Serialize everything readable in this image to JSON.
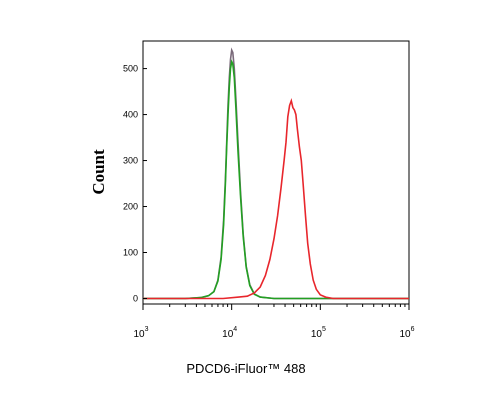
{
  "chart_data": {
    "type": "line",
    "xlabel": "PDCD6-iFluor™ 488",
    "ylabel": "Count",
    "xscale": "log",
    "xlim": [
      1000,
      1000000
    ],
    "ylim": [
      -12,
      560
    ],
    "x_ticks": [
      {
        "value": 1000,
        "base": "10",
        "exp": "3"
      },
      {
        "value": 10000,
        "base": "10",
        "exp": "4"
      },
      {
        "value": 100000,
        "base": "10",
        "exp": "5"
      },
      {
        "value": 1000000,
        "base": "10",
        "exp": "6"
      }
    ],
    "y_ticks": [
      "0",
      "100",
      "200",
      "300",
      "400",
      "500"
    ],
    "grid": false,
    "legend": "none",
    "series": [
      {
        "color": "#7a6a7a",
        "points": [
          [
            1000,
            0
          ],
          [
            3000,
            0
          ],
          [
            4500,
            2
          ],
          [
            5500,
            6
          ],
          [
            6300,
            15
          ],
          [
            7000,
            40
          ],
          [
            7600,
            90
          ],
          [
            8100,
            170
          ],
          [
            8500,
            260
          ],
          [
            8800,
            340
          ],
          [
            9100,
            420
          ],
          [
            9400,
            480
          ],
          [
            9700,
            520
          ],
          [
            10000,
            540
          ],
          [
            10300,
            535
          ],
          [
            10700,
            500
          ],
          [
            11200,
            430
          ],
          [
            11800,
            340
          ],
          [
            12600,
            230
          ],
          [
            13500,
            140
          ],
          [
            14600,
            70
          ],
          [
            16000,
            30
          ],
          [
            18000,
            10
          ],
          [
            21000,
            3
          ],
          [
            30000,
            0
          ],
          [
            1000000,
            0
          ]
        ]
      },
      {
        "color": "#22a022",
        "points": [
          [
            1000,
            0
          ],
          [
            3000,
            0
          ],
          [
            4500,
            2
          ],
          [
            5500,
            6
          ],
          [
            6300,
            15
          ],
          [
            7000,
            38
          ],
          [
            7600,
            85
          ],
          [
            8100,
            160
          ],
          [
            8500,
            250
          ],
          [
            8800,
            330
          ],
          [
            9100,
            400
          ],
          [
            9400,
            460
          ],
          [
            9700,
            500
          ],
          [
            10000,
            515
          ],
          [
            10300,
            510
          ],
          [
            10700,
            480
          ],
          [
            11200,
            410
          ],
          [
            11800,
            320
          ],
          [
            12600,
            220
          ],
          [
            13500,
            135
          ],
          [
            14600,
            68
          ],
          [
            16000,
            28
          ],
          [
            18000,
            9
          ],
          [
            21000,
            3
          ],
          [
            30000,
            0
          ],
          [
            1000000,
            0
          ]
        ]
      },
      {
        "color": "#e8262c",
        "points": [
          [
            1000,
            0
          ],
          [
            8000,
            0
          ],
          [
            12000,
            3
          ],
          [
            15000,
            5
          ],
          [
            18000,
            12
          ],
          [
            21000,
            25
          ],
          [
            24000,
            50
          ],
          [
            27000,
            85
          ],
          [
            30000,
            130
          ],
          [
            33000,
            180
          ],
          [
            36000,
            240
          ],
          [
            39000,
            300
          ],
          [
            41000,
            340
          ],
          [
            43000,
            395
          ],
          [
            45000,
            420
          ],
          [
            47000,
            430
          ],
          [
            49000,
            415
          ],
          [
            51000,
            410
          ],
          [
            53000,
            400
          ],
          [
            55000,
            370
          ],
          [
            58000,
            330
          ],
          [
            61000,
            300
          ],
          [
            64000,
            250
          ],
          [
            68000,
            180
          ],
          [
            72000,
            120
          ],
          [
            77000,
            75
          ],
          [
            83000,
            40
          ],
          [
            90000,
            20
          ],
          [
            100000,
            8
          ],
          [
            115000,
            3
          ],
          [
            140000,
            0
          ],
          [
            1000000,
            0
          ]
        ]
      }
    ]
  }
}
